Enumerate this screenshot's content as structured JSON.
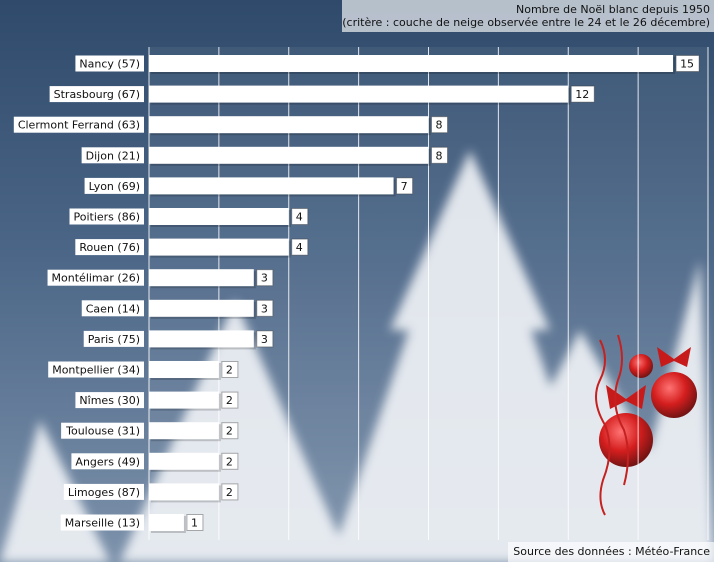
{
  "header": {
    "title_line1": "Nombre de Noël blanc depuis 1950",
    "title_line2": "(critère : couche de neige observée entre le 24 et le 26 décembre)"
  },
  "footer": {
    "source": "Source des données : Météo-France"
  },
  "colors": {
    "bar": "#ffffff",
    "grid": "#ffffff",
    "background": "#3b5577",
    "ornament": "#d21010"
  },
  "chart_data": {
    "type": "bar",
    "orientation": "horizontal",
    "categories": [
      "Nancy (57)",
      "Strasbourg (67)",
      "Clermont Ferrand (63)",
      "Dijon (21)",
      "Lyon (69)",
      "Poitiers (86)",
      "Rouen (76)",
      "Montélimar (26)",
      "Caen (14)",
      "Paris (75)",
      "Montpellier (34)",
      "Nîmes (30)",
      "Toulouse (31)",
      "Angers (49)",
      "Limoges (87)",
      "Marseille (13)"
    ],
    "values": [
      15,
      12,
      8,
      8,
      7,
      4,
      4,
      3,
      3,
      3,
      2,
      2,
      2,
      2,
      2,
      1
    ],
    "xlim": [
      0,
      16
    ],
    "grid": true,
    "data_labels": true
  }
}
